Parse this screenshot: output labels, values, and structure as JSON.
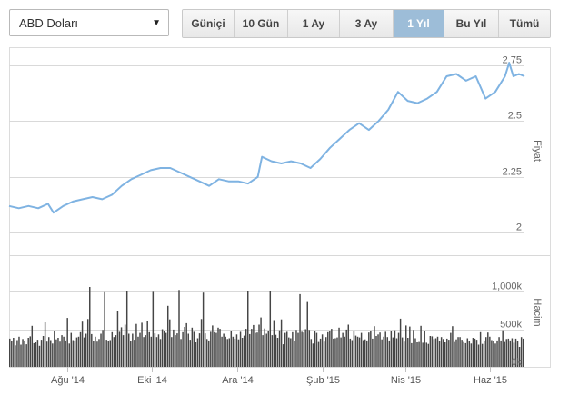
{
  "currency_select": {
    "value": "ABD Doları",
    "caret_icon": "caret-down-icon"
  },
  "range_buttons": [
    {
      "label": "Güniçi",
      "active": false
    },
    {
      "label": "10 Gün",
      "active": false
    },
    {
      "label": "1 Ay",
      "active": false
    },
    {
      "label": "3 Ay",
      "active": false
    },
    {
      "label": "1 Yıl",
      "active": true
    },
    {
      "label": "Bu Yıl",
      "active": false
    },
    {
      "label": "Tümü",
      "active": false
    }
  ],
  "colors": {
    "price_line": "#7fb3e2",
    "volume_bars": "#454545",
    "active_button": "#9dbdd8"
  },
  "chart_data": [
    {
      "type": "line",
      "panel": "price",
      "ylabel": "Fiyat",
      "ylim": [
        1.9,
        2.83
      ],
      "yticks": [
        2,
        2.25,
        2.5,
        2.75
      ],
      "ytick_labels": [
        "2",
        "2.25",
        "2.5",
        "2.75"
      ],
      "grid": true,
      "x_ticks": [
        {
          "date": "2014-08-01",
          "label": "Ağu '14"
        },
        {
          "date": "2014-10-01",
          "label": "Eki '14"
        },
        {
          "date": "2014-12-01",
          "label": "Ara '14"
        },
        {
          "date": "2015-02-01",
          "label": "Şub '15"
        },
        {
          "date": "2015-04-01",
          "label": "Nis '15"
        },
        {
          "date": "2015-06-01",
          "label": "Haz '15"
        }
      ],
      "series": [
        {
          "points": [
            [
              "2014-06-20",
              2.12
            ],
            [
              "2014-06-27",
              2.11
            ],
            [
              "2014-07-04",
              2.12
            ],
            [
              "2014-07-11",
              2.11
            ],
            [
              "2014-07-18",
              2.13
            ],
            [
              "2014-07-22",
              2.09
            ],
            [
              "2014-07-29",
              2.12
            ],
            [
              "2014-08-05",
              2.14
            ],
            [
              "2014-08-12",
              2.15
            ],
            [
              "2014-08-19",
              2.16
            ],
            [
              "2014-08-26",
              2.15
            ],
            [
              "2014-09-02",
              2.17
            ],
            [
              "2014-09-09",
              2.21
            ],
            [
              "2014-09-16",
              2.24
            ],
            [
              "2014-09-23",
              2.26
            ],
            [
              "2014-09-30",
              2.28
            ],
            [
              "2014-10-07",
              2.29
            ],
            [
              "2014-10-14",
              2.29
            ],
            [
              "2014-10-21",
              2.27
            ],
            [
              "2014-10-28",
              2.25
            ],
            [
              "2014-11-04",
              2.23
            ],
            [
              "2014-11-11",
              2.21
            ],
            [
              "2014-11-18",
              2.24
            ],
            [
              "2014-11-25",
              2.23
            ],
            [
              "2014-12-02",
              2.23
            ],
            [
              "2014-12-09",
              2.22
            ],
            [
              "2014-12-16",
              2.25
            ],
            [
              "2014-12-19",
              2.34
            ],
            [
              "2014-12-26",
              2.32
            ],
            [
              "2015-01-02",
              2.31
            ],
            [
              "2015-01-09",
              2.32
            ],
            [
              "2015-01-16",
              2.31
            ],
            [
              "2015-01-23",
              2.29
            ],
            [
              "2015-01-30",
              2.33
            ],
            [
              "2015-02-06",
              2.38
            ],
            [
              "2015-02-13",
              2.42
            ],
            [
              "2015-02-20",
              2.46
            ],
            [
              "2015-02-27",
              2.49
            ],
            [
              "2015-03-06",
              2.46
            ],
            [
              "2015-03-13",
              2.5
            ],
            [
              "2015-03-20",
              2.55
            ],
            [
              "2015-03-27",
              2.63
            ],
            [
              "2015-04-03",
              2.59
            ],
            [
              "2015-04-10",
              2.58
            ],
            [
              "2015-04-17",
              2.6
            ],
            [
              "2015-04-24",
              2.63
            ],
            [
              "2015-05-01",
              2.7
            ],
            [
              "2015-05-08",
              2.71
            ],
            [
              "2015-05-15",
              2.68
            ],
            [
              "2015-05-22",
              2.7
            ],
            [
              "2015-05-29",
              2.6
            ],
            [
              "2015-06-05",
              2.63
            ],
            [
              "2015-06-12",
              2.7
            ],
            [
              "2015-06-15",
              2.76
            ],
            [
              "2015-06-18",
              2.7
            ],
            [
              "2015-06-22",
              2.71
            ],
            [
              "2015-06-26",
              2.7
            ]
          ]
        }
      ]
    },
    {
      "type": "bar",
      "panel": "volume",
      "ylabel": "Hacim",
      "ylim": [
        0,
        1000000
      ],
      "yticks": [
        0,
        500000,
        1000000
      ],
      "ytick_labels": [
        "0k",
        "500k",
        "1,000k"
      ],
      "grid": true,
      "series": [
        {
          "date_start": "2014-06-20",
          "date_end": "2015-06-26",
          "values": [
            375000,
            340000,
            385000,
            285000,
            355000,
            400000,
            295000,
            370000,
            345000,
            300000,
            385000,
            405000,
            545000,
            315000,
            325000,
            360000,
            280000,
            360000,
            410000,
            590000,
            335000,
            395000,
            355000,
            310000,
            470000,
            365000,
            385000,
            335000,
            420000,
            400000,
            350000,
            650000,
            310000,
            450000,
            355000,
            350000,
            390000,
            400000,
            460000,
            600000,
            390000,
            440000,
            635000,
            1060000,
            435000,
            345000,
            400000,
            335000,
            370000,
            440000,
            490000,
            990000,
            360000,
            345000,
            355000,
            460000,
            395000,
            420000,
            745000,
            465000,
            525000,
            420000,
            560000,
            1000000,
            440000,
            340000,
            440000,
            360000,
            570000,
            400000,
            450000,
            585000,
            395000,
            420000,
            615000,
            460000,
            400000,
            995000,
            445000,
            395000,
            430000,
            370000,
            500000,
            475000,
            450000,
            810000,
            630000,
            395000,
            495000,
            420000,
            445000,
            1020000,
            370000,
            460000,
            530000,
            580000,
            440000,
            360000,
            520000,
            465000,
            325000,
            380000,
            445000,
            635000,
            985000,
            445000,
            370000,
            350000,
            465000,
            550000,
            460000,
            450000,
            520000,
            505000,
            400000,
            440000,
            400000,
            370000,
            380000,
            475000,
            400000,
            375000,
            430000,
            365000,
            465000,
            385000,
            415000,
            505000,
            1010000,
            435000,
            505000,
            555000,
            450000,
            455000,
            560000,
            655000,
            420000,
            510000,
            440000,
            480000,
            1010000,
            420000,
            620000,
            425000,
            385000,
            485000,
            630000,
            300000,
            450000,
            465000,
            390000,
            380000,
            460000,
            340000,
            490000,
            450000,
            965000,
            465000,
            455000,
            500000,
            860000,
            490000,
            370000,
            310000,
            470000,
            450000,
            330000,
            375000,
            430000,
            335000,
            395000,
            460000,
            470000,
            505000,
            375000,
            380000,
            390000,
            520000,
            390000,
            450000,
            400000,
            495000,
            560000,
            375000,
            355000,
            480000,
            415000,
            400000,
            390000,
            450000,
            355000,
            365000,
            350000,
            455000,
            470000,
            375000,
            540000,
            410000,
            430000,
            455000,
            365000,
            400000,
            465000,
            395000,
            350000,
            480000,
            390000,
            485000,
            380000,
            450000,
            640000,
            390000,
            335000,
            550000,
            385000,
            535000,
            315000,
            490000,
            380000,
            325000,
            330000,
            545000,
            320000,
            470000,
            320000,
            305000,
            410000,
            405000,
            370000,
            380000,
            400000,
            345000,
            395000,
            370000,
            325000,
            375000,
            360000,
            450000,
            540000,
            330000,
            365000,
            395000,
            395000,
            360000,
            330000,
            315000,
            380000,
            345000,
            310000,
            385000,
            375000,
            360000,
            295000,
            460000,
            305000,
            350000,
            395000,
            455000,
            400000,
            355000,
            340000,
            310000,
            350000,
            395000,
            350000,
            485000,
            330000,
            370000,
            375000,
            350000,
            380000,
            320000,
            375000,
            345000,
            265000,
            395000,
            375000
          ]
        }
      ]
    }
  ]
}
